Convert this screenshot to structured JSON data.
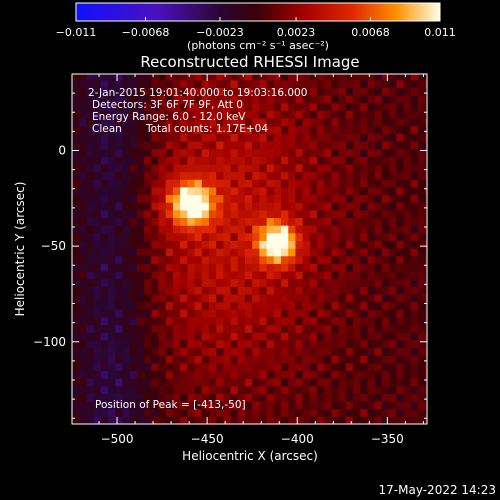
{
  "chart_data": {
    "type": "heatmap",
    "title": "Reconstructed RHESSI Image",
    "xlabel": "Heliocentric X (arcsec)",
    "ylabel": "Heliocentric Y (arcsec)",
    "xlim": [
      -525,
      -328
    ],
    "ylim": [
      -143,
      40
    ],
    "x_ticks": [
      -500,
      -450,
      -400,
      -350
    ],
    "x_tick_labels": [
      "−500",
      "−450",
      "−400",
      "−350"
    ],
    "y_ticks": [
      0,
      -50,
      -100
    ],
    "y_tick_labels": [
      "0",
      "−50",
      "−100"
    ],
    "colorbar": {
      "range": [
        -0.011,
        0.011
      ],
      "ticks": [
        -0.011,
        -0.0068,
        -0.0023,
        0.0023,
        0.0068,
        0.011
      ],
      "tick_labels": [
        "−0.011",
        "−0.0068",
        "−0.0023",
        "0.0023",
        "0.0068",
        "0.011"
      ],
      "label": "(photons cm⁻² s⁻¹ asec⁻²)"
    },
    "sources": [
      {
        "x": -460,
        "y": -30,
        "peak": 0.0085
      },
      {
        "x": -413,
        "y": -50,
        "peak": 0.011
      }
    ],
    "annotations": {
      "time": "2-Jan-2015 19:01:40.000 to 19:03:16.000",
      "detectors": "Detectors: 3F 6F 7F 9F, Att 0",
      "energy": "Energy Range: 6.0 - 12.0 keV",
      "clean": "Clean",
      "counts": "Total counts: 1.17E+04",
      "peak": "Position of Peak = [-413,-50]"
    }
  },
  "footer": {
    "timestamp": "17-May-2022 14:23"
  }
}
